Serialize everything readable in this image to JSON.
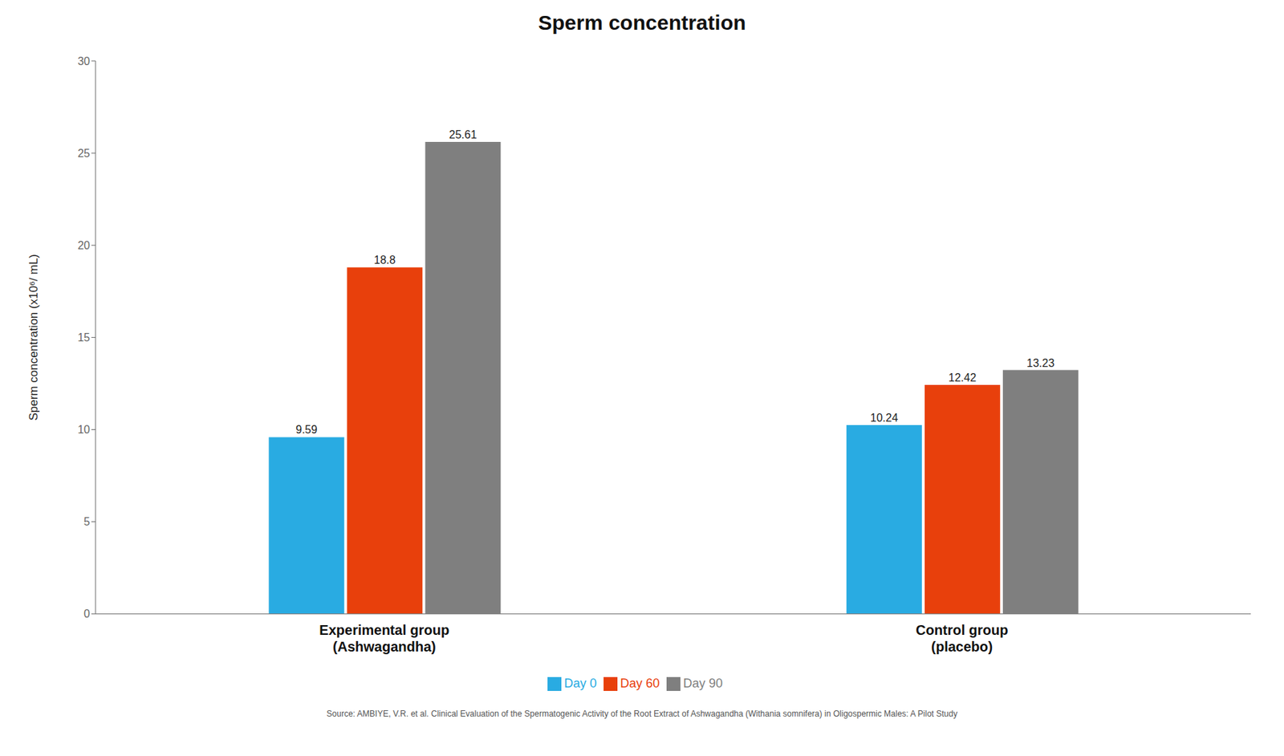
{
  "chart_data": {
    "type": "bar",
    "title": "Sperm concentration",
    "ylabel": "Sperm concentration (x10⁶/ mL)",
    "categories": [
      "Experimental group\n(Ashwagandha)",
      "Control group\n(placebo)"
    ],
    "series": [
      {
        "name": "Day 0",
        "color": "#29ABE2",
        "values": [
          9.59,
          10.24
        ]
      },
      {
        "name": "Day 60",
        "color": "#E8400C",
        "values": [
          18.8,
          12.42
        ]
      },
      {
        "name": "Day 90",
        "color": "#7F7F7F",
        "values": [
          25.61,
          13.23
        ]
      }
    ],
    "ylim": [
      0,
      30
    ],
    "yticks": [
      0,
      5,
      10,
      15,
      20,
      25,
      30
    ],
    "grid": false,
    "data_labels": true,
    "legend": "bottom",
    "annotations": [
      "Source: AMBIYE, V.R. et al. Clinical Evaluation of the Spermatogenic Activity of the Root Extract of Ashwagandha (Withania somnifera) in Oligospermic Males: A Pilot Study"
    ]
  }
}
